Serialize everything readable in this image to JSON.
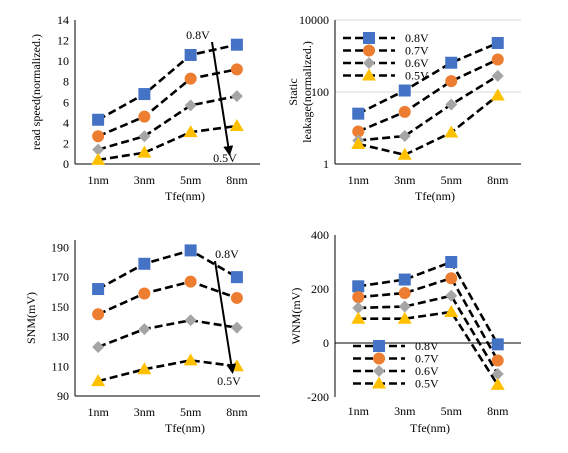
{
  "chart_data": [
    {
      "type": "line",
      "id": "read-speed",
      "ylabel": "read speed(normalized.)",
      "xlabel": "Tfe(nm)",
      "categories": [
        "1nm",
        "3nm",
        "5nm",
        "8nm"
      ],
      "yticks": [
        "0",
        "2",
        "4",
        "6",
        "8",
        "10",
        "12",
        "14"
      ],
      "ylim": [
        0,
        14
      ],
      "scale": "linear",
      "grid": false,
      "series": [
        {
          "name": "0.8V",
          "values": [
            4.3,
            6.8,
            10.6,
            11.6
          ]
        },
        {
          "name": "0.7V",
          "values": [
            2.7,
            4.6,
            8.3,
            9.2
          ]
        },
        {
          "name": "0.6V",
          "values": [
            1.4,
            2.7,
            5.7,
            6.6
          ]
        },
        {
          "name": "0.5V",
          "values": [
            0.4,
            1.1,
            3.1,
            3.7
          ]
        }
      ],
      "annotations": [
        {
          "text": "0.8V"
        },
        {
          "text": "0.5V"
        }
      ]
    },
    {
      "type": "line",
      "id": "static-leakage",
      "ylabel": "Static leakage(normalized.)",
      "xlabel": "Tfe(nm)",
      "categories": [
        "1nm",
        "3nm",
        "5nm",
        "8nm"
      ],
      "yticks": [
        "1",
        "100",
        "10000"
      ],
      "ylim": [
        1,
        10000
      ],
      "scale": "log",
      "grid": true,
      "legend_position": "top-left",
      "series": [
        {
          "name": "0.8V",
          "values": [
            25,
            110,
            650,
            2300
          ]
        },
        {
          "name": "0.7V",
          "values": [
            8,
            28,
            200,
            800
          ]
        },
        {
          "name": "0.6V",
          "values": [
            4.5,
            6,
            45,
            280
          ]
        },
        {
          "name": "0.5V",
          "values": [
            3.6,
            1.8,
            7.5,
            80
          ]
        }
      ]
    },
    {
      "type": "line",
      "id": "snm",
      "ylabel": "SNM(mV)",
      "xlabel": "Tfe(nm)",
      "categories": [
        "1nm",
        "3nm",
        "5nm",
        "8nm"
      ],
      "yticks": [
        "90",
        "110",
        "130",
        "150",
        "170",
        "190"
      ],
      "ylim": [
        90,
        195
      ],
      "scale": "linear",
      "grid": false,
      "series": [
        {
          "name": "0.8V",
          "values": [
            162,
            179,
            188,
            170
          ]
        },
        {
          "name": "0.7V",
          "values": [
            145,
            159,
            167,
            156
          ]
        },
        {
          "name": "0.6V",
          "values": [
            123,
            135,
            141,
            136
          ]
        },
        {
          "name": "0.5V",
          "values": [
            100,
            108,
            114,
            110
          ]
        }
      ],
      "annotations": [
        {
          "text": "0.8V"
        },
        {
          "text": "0.5V"
        }
      ]
    },
    {
      "type": "line",
      "id": "wnm",
      "ylabel": "WNM(mV)",
      "xlabel": "Tfe(nm)",
      "categories": [
        "1nm",
        "3nm",
        "5nm",
        "8nm"
      ],
      "yticks": [
        "-200",
        "0",
        "200",
        "400"
      ],
      "ylim": [
        -200,
        400
      ],
      "scale": "linear",
      "grid": false,
      "legend_position": "bottom-left",
      "series": [
        {
          "name": "0.8V",
          "values": [
            210,
            235,
            300,
            -5
          ]
        },
        {
          "name": "0.7V",
          "values": [
            170,
            185,
            240,
            -65
          ]
        },
        {
          "name": "0.6V",
          "values": [
            130,
            135,
            175,
            -115
          ]
        },
        {
          "name": "0.5V",
          "values": [
            90,
            90,
            115,
            -155
          ]
        }
      ]
    }
  ],
  "style": {
    "series_colors": [
      "#4472C4",
      "#ED7D31",
      "#A5A5A5",
      "#FFC000"
    ],
    "series_markers": [
      "square",
      "circle",
      "diamond",
      "triangle"
    ],
    "line_color": "#000000",
    "grid_color": "#D9D9D9"
  }
}
